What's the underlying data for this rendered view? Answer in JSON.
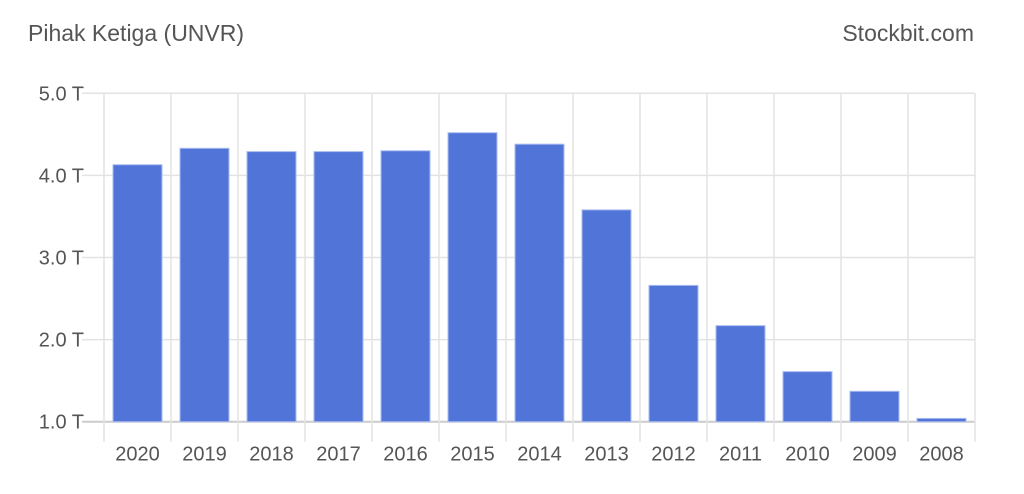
{
  "header": {
    "title": "Pihak Ketiga (UNVR)",
    "brand": "Stockbit.com"
  },
  "chart_data": {
    "type": "bar",
    "title": "Pihak Ketiga (UNVR)",
    "categories": [
      "2020",
      "2019",
      "2018",
      "2017",
      "2016",
      "2015",
      "2014",
      "2013",
      "2012",
      "2011",
      "2010",
      "2009",
      "2008"
    ],
    "values": [
      4.13,
      4.33,
      4.29,
      4.29,
      4.3,
      4.52,
      4.38,
      3.58,
      2.66,
      2.17,
      1.61,
      1.37,
      1.04
    ],
    "unit": "T",
    "ylim": [
      1.0,
      5.0
    ],
    "yticks": [
      "1.0 T",
      "2.0 T",
      "3.0 T",
      "4.0 T",
      "5.0 T"
    ],
    "grid": true,
    "bar_color": "#5174d9"
  }
}
